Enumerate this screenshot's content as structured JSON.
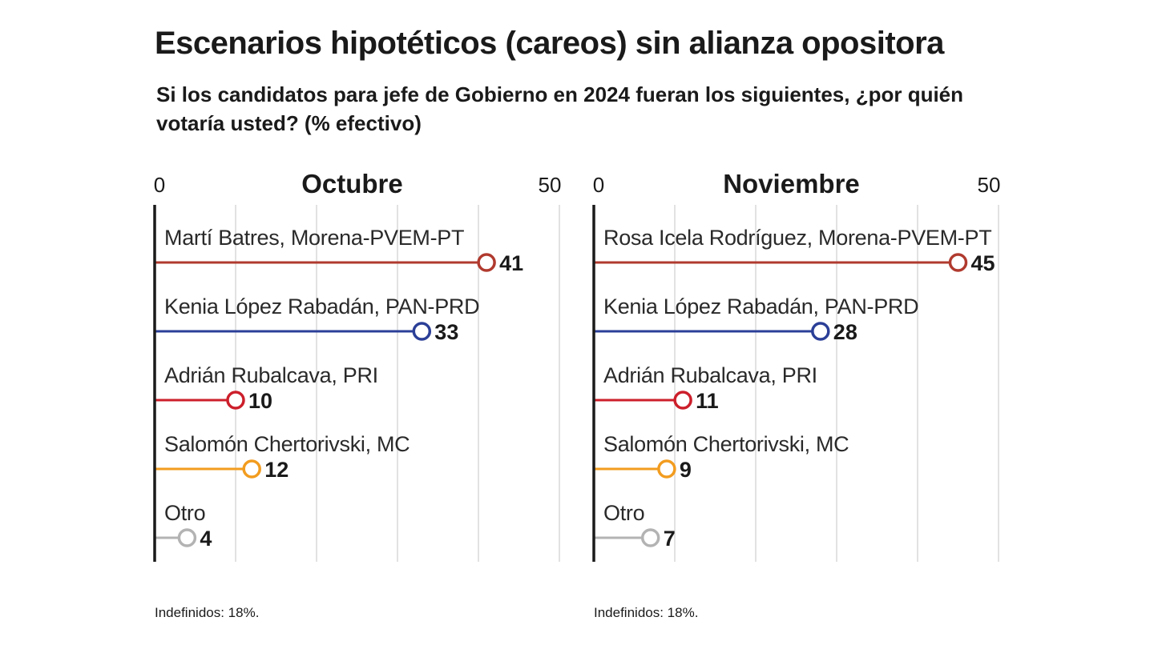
{
  "header": {
    "title": "Escenarios hipotéticos (careos) sin alianza opositora",
    "subtitle": "Si los candidatos para jefe de Gobierno en 2024 fueran los siguientes, ¿por quién votaría usted? (% efectivo)"
  },
  "colors": {
    "morena": "#b03a2e",
    "pan": "#2b3f97",
    "pri": "#cc1f2b",
    "mc": "#f29c1f",
    "otro": "#b3b3b3",
    "grid": "#cfcfcf",
    "axis": "#1a1a1a"
  },
  "chart_data": [
    {
      "type": "lollipop",
      "title": "Octubre",
      "xlim": [
        0,
        50
      ],
      "ticks": [
        "0",
        "50"
      ],
      "grid": true,
      "categories": [
        "Martí Batres, Morena-PVEM-PT",
        "Kenia López Rabadán, PAN-PRD",
        "Adrián Rubalcava, PRI",
        "Salomón Chertorivski, MC",
        "Otro"
      ],
      "values": [
        41,
        33,
        10,
        12,
        4
      ],
      "labels": [
        "41",
        "33",
        "10",
        "12",
        "4"
      ],
      "colors": [
        "#b03a2e",
        "#2b3f97",
        "#cc1f2b",
        "#f29c1f",
        "#b3b3b3"
      ],
      "footnote": "Indefinidos: 18%."
    },
    {
      "type": "lollipop",
      "title": "Noviembre",
      "xlim": [
        0,
        50
      ],
      "ticks": [
        "0",
        "50"
      ],
      "grid": true,
      "categories": [
        "Rosa Icela Rodríguez, Morena-PVEM-PT",
        "Kenia López Rabadán, PAN-PRD",
        "Adrián Rubalcava, PRI",
        "Salomón Chertorivski, MC",
        "Otro"
      ],
      "values": [
        45,
        28,
        11,
        9,
        7
      ],
      "labels": [
        "45",
        "28",
        "11",
        "9",
        "7"
      ],
      "colors": [
        "#b03a2e",
        "#2b3f97",
        "#cc1f2b",
        "#f29c1f",
        "#b3b3b3"
      ],
      "footnote": "Indefinidos: 18%."
    }
  ]
}
